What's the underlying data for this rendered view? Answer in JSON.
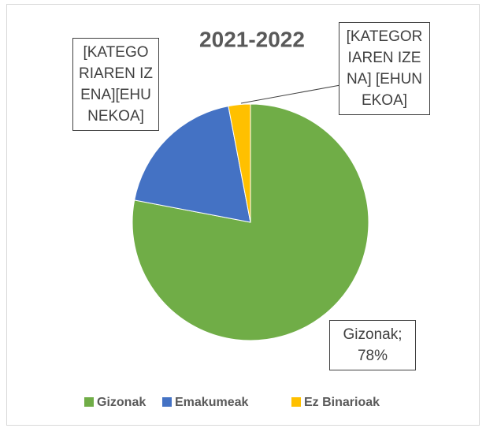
{
  "chart_data": {
    "type": "pie",
    "title": "2021-2022",
    "categories": [
      "Gizonak",
      "Emakumeak",
      "Ez Binarioak"
    ],
    "values": [
      78,
      19,
      3
    ],
    "value_labels": [
      "Gizonak; 78%",
      "[KATEGORIAREN IZENA][EHUNEKOA]",
      "[KATEGORIAREN IZENA] [EHUNEKOA]"
    ],
    "colors": [
      "#70ad47",
      "#4472c4",
      "#ffc000"
    ],
    "legend": "bottom"
  }
}
